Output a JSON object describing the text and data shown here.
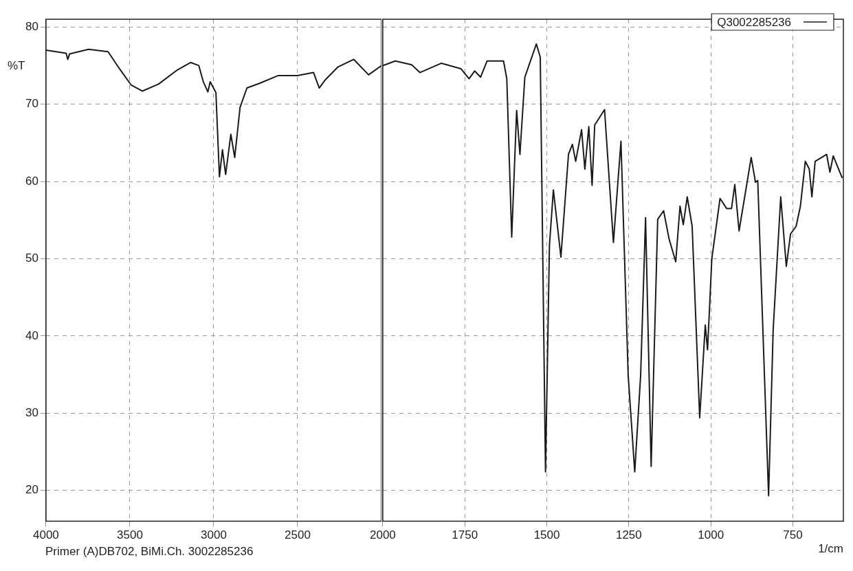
{
  "chart_data": [
    {
      "type": "line",
      "ylabel": "%T",
      "annotations": [
        "Primer (A)DB702, BiMi.Ch. 3002285236"
      ],
      "xlim": [
        4000,
        2000
      ],
      "xticks": [
        4000,
        3500,
        3000,
        2500
      ],
      "ylim": [
        16,
        81
      ],
      "yticks": [
        20,
        30,
        40,
        50,
        60,
        70,
        80
      ],
      "grid": true,
      "marker": "none",
      "line_style": "solid",
      "x": [
        4000,
        3880,
        3870,
        3860,
        3746,
        3630,
        3562,
        3493,
        3425,
        3329,
        3219,
        3137,
        3089,
        3062,
        3035,
        3021,
        2987,
        2966,
        2948,
        2929,
        2898,
        2875,
        2843,
        2802,
        2727,
        2617,
        2501,
        2405,
        2371,
        2337,
        2261,
        2165,
        2077,
        2000
      ],
      "series": [
        {
          "color": "#1a1a1a",
          "values": [
            77.0,
            76.6,
            75.8,
            76.5,
            77.1,
            76.8,
            74.6,
            72.5,
            71.7,
            72.6,
            74.4,
            75.4,
            75.0,
            72.9,
            71.6,
            72.9,
            71.5,
            60.6,
            64.1,
            60.9,
            66.1,
            63.1,
            69.6,
            72.1,
            72.7,
            73.7,
            73.7,
            74.1,
            72.1,
            73.1,
            74.8,
            75.8,
            73.8,
            75.0
          ]
        }
      ]
    },
    {
      "type": "line",
      "xlabel": "1/cm",
      "xlim": [
        2000,
        596
      ],
      "xticks": [
        2000,
        1750,
        1500,
        1250,
        1000,
        750
      ],
      "ylim": [
        16,
        81
      ],
      "yticks": [
        20,
        30,
        40,
        50,
        60,
        70,
        80
      ],
      "tick_labels": "x",
      "grid": true,
      "legend": "top right",
      "marker": "none",
      "line_style": "solid",
      "x": [
        2000,
        1962,
        1912,
        1887,
        1822,
        1762,
        1737,
        1720,
        1702,
        1682,
        1632,
        1622,
        1607,
        1592,
        1582,
        1567,
        1532,
        1520,
        1504,
        1492,
        1480,
        1457,
        1434,
        1422,
        1412,
        1394,
        1384,
        1372,
        1362,
        1354,
        1324,
        1297,
        1274,
        1252,
        1232,
        1214,
        1199,
        1182,
        1162,
        1144,
        1127,
        1107,
        1094,
        1084,
        1072,
        1057,
        1034,
        1017,
        1010,
        997,
        972,
        952,
        937,
        927,
        914,
        877,
        864,
        857,
        824,
        810,
        787,
        770,
        757,
        740,
        727,
        712,
        700,
        692,
        682,
        647,
        637,
        627,
        600
      ],
      "series": [
        {
          "name": "Q3002285236",
          "color": "#1a1a1a",
          "values": [
            75.0,
            75.6,
            75.1,
            74.1,
            75.3,
            74.6,
            73.3,
            74.3,
            73.5,
            75.6,
            75.6,
            73.3,
            52.8,
            69.2,
            63.5,
            73.5,
            77.8,
            76.1,
            22.4,
            51.7,
            58.9,
            50.2,
            63.5,
            64.8,
            62.6,
            66.7,
            61.6,
            67.1,
            59.5,
            67.3,
            69.3,
            52.1,
            65.2,
            34.9,
            22.4,
            34.9,
            55.3,
            23.1,
            55.1,
            56.2,
            52.5,
            49.6,
            56.8,
            54.4,
            58.0,
            54.2,
            29.4,
            41.4,
            38.2,
            50.0,
            57.8,
            56.5,
            56.5,
            59.6,
            53.6,
            63.1,
            59.9,
            60.1,
            19.3,
            40.8,
            58.0,
            49.0,
            53.2,
            54.2,
            56.8,
            62.6,
            61.6,
            58.0,
            62.6,
            63.5,
            61.2,
            63.3,
            60.5
          ]
        }
      ]
    }
  ]
}
